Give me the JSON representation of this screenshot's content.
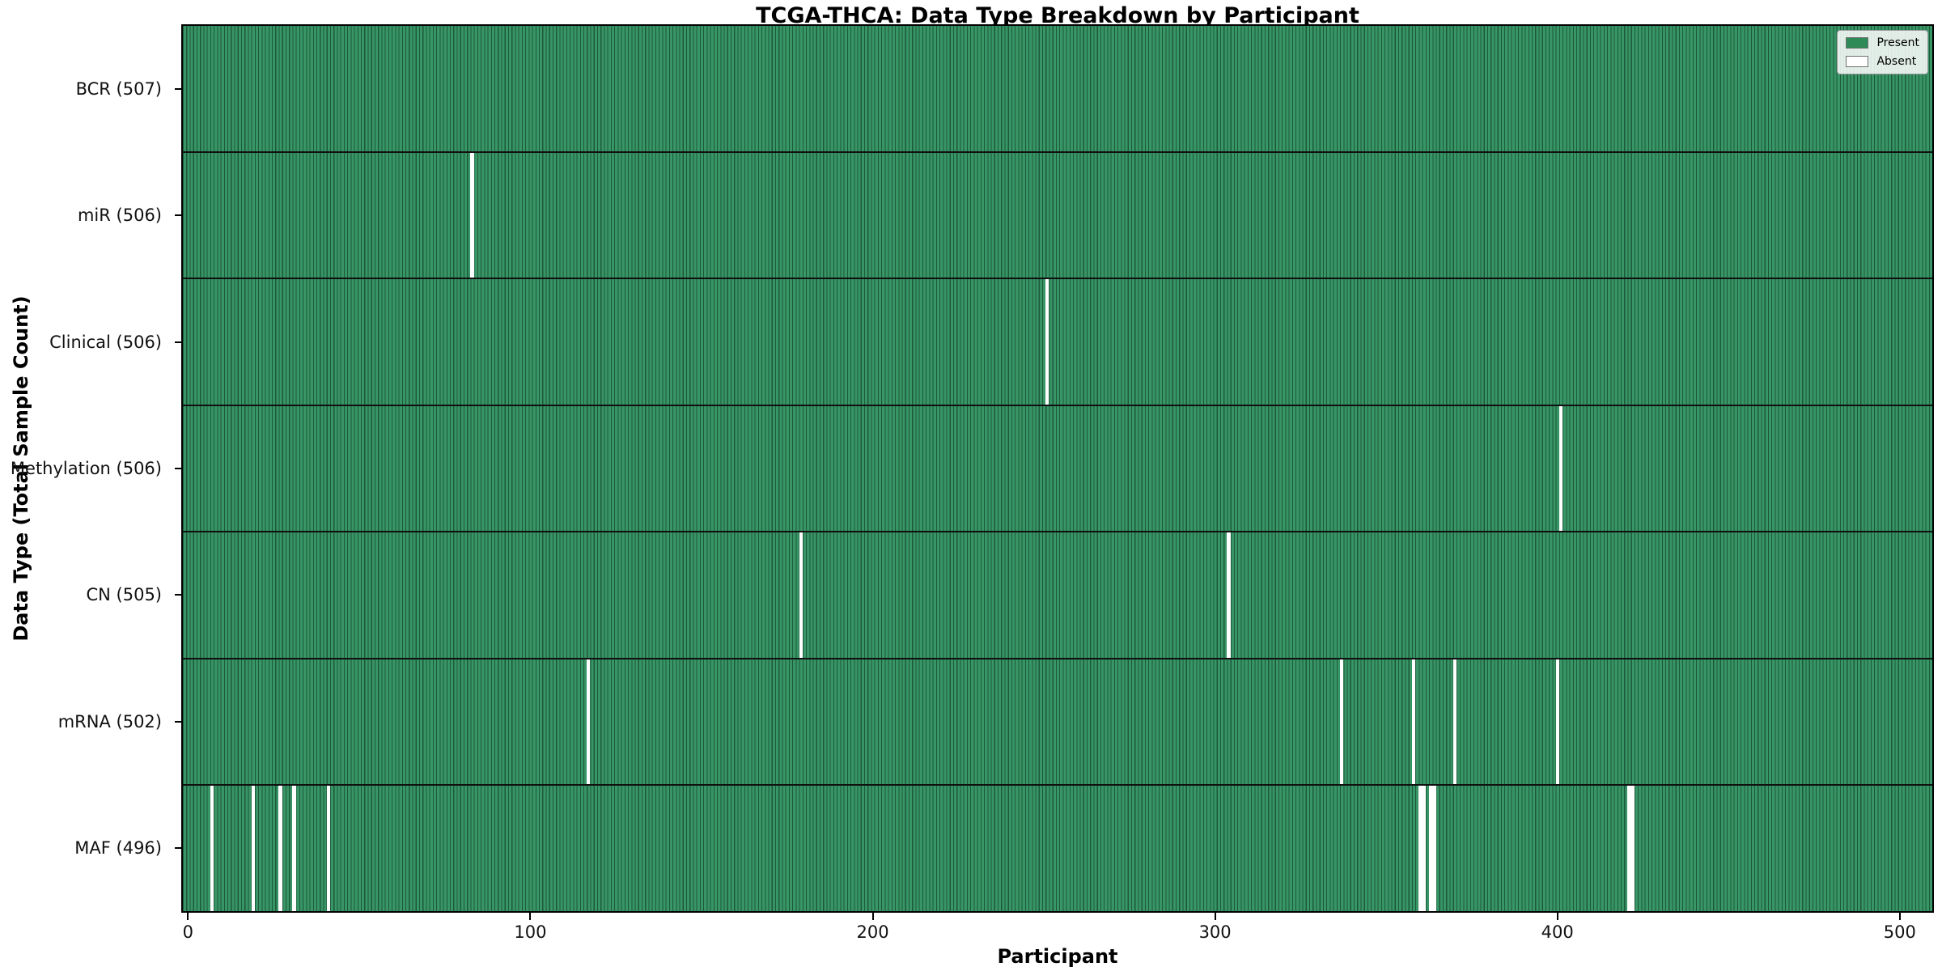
{
  "chart_data": {
    "type": "heatmap",
    "title": "TCGA-THCA: Data Type Breakdown by Participant",
    "xlabel": "Participant",
    "ylabel": "Data Type (Total Sample Count)",
    "total_participants": 507,
    "x_ticks": [
      0,
      100,
      200,
      300,
      400,
      500
    ],
    "xlim": [
      -1.5,
      509.5
    ],
    "grid": false,
    "legend_position": "upper right",
    "legend": [
      {
        "label": "Present",
        "color": "#2E8B57"
      },
      {
        "label": "Absent",
        "color": "#FFFFFF"
      }
    ],
    "rows": [
      {
        "label": "BCR (507)",
        "data_type": "BCR",
        "present_count": 507,
        "absent_participants": []
      },
      {
        "label": "miR (506)",
        "data_type": "miR",
        "present_count": 506,
        "absent_participants": [
          83
        ]
      },
      {
        "label": "Clinical (506)",
        "data_type": "Clinical",
        "present_count": 506,
        "absent_participants": [
          251
        ]
      },
      {
        "label": "Methylation (506)",
        "data_type": "Methylation",
        "present_count": 506,
        "absent_participants": [
          401
        ]
      },
      {
        "label": "CN (505)",
        "data_type": "CN",
        "present_count": 505,
        "absent_participants": [
          179,
          304
        ]
      },
      {
        "label": "mRNA (502)",
        "data_type": "mRNA",
        "present_count": 502,
        "absent_participants": [
          117,
          337,
          358,
          370,
          400
        ]
      },
      {
        "label": "MAF (496)",
        "data_type": "MAF",
        "present_count": 496,
        "absent_participants": [
          7,
          19,
          27,
          31,
          41,
          360,
          361,
          363,
          364,
          421,
          422
        ]
      }
    ],
    "colors": {
      "present_fill": "#389566",
      "bar_edge": "rgba(5,40,22,0.55)",
      "absent_fill": "#FFFFFF",
      "row_separator": "#101010",
      "plot_border": "#000000"
    }
  }
}
